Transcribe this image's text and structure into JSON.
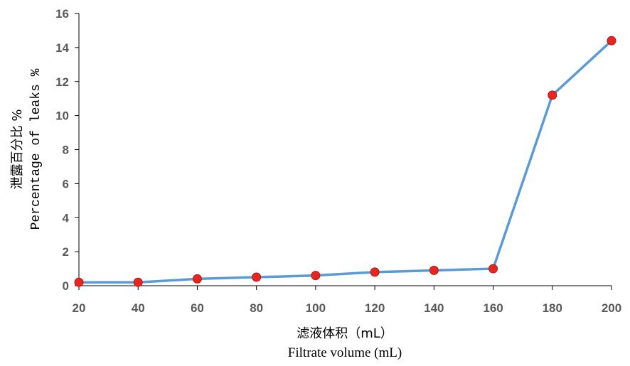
{
  "chart_data": {
    "type": "line",
    "x": [
      20,
      40,
      60,
      80,
      100,
      120,
      140,
      160,
      180,
      200
    ],
    "series": [
      {
        "values": [
          0.2,
          0.2,
          0.4,
          0.5,
          0.6,
          0.8,
          0.9,
          1.0,
          11.2,
          14.4
        ]
      }
    ],
    "xlabel": "滤液体积（mL）",
    "xlabel_en": "Filtrate volume (mL)",
    "ylabel": "泄露百分比 %",
    "ylabel_en": "Percentage of leaks %",
    "xticks": [
      "20",
      "40",
      "60",
      "80",
      "100",
      "120",
      "140",
      "160",
      "180",
      "200"
    ],
    "yticks": [
      "0",
      "2",
      "4",
      "6",
      "8",
      "10",
      "12",
      "14",
      "16"
    ],
    "xlim": [
      20,
      200
    ],
    "ylim": [
      0,
      16
    ],
    "grid": false,
    "colors": {
      "line": "#5b9bd5",
      "marker": "#e8251f",
      "axis": "#000000",
      "tick_text": "#595959"
    }
  }
}
